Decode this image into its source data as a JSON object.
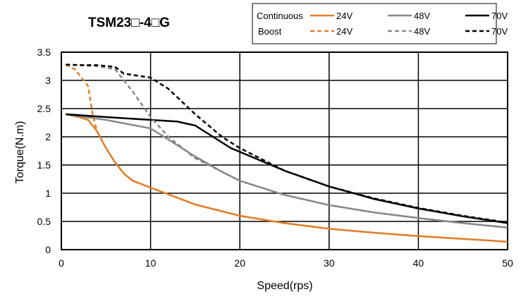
{
  "chart_data": {
    "type": "line",
    "title": "TSM23□-4□G",
    "xlabel": "Speed(rps)",
    "ylabel": "Torque(N.m)",
    "xlim": [
      0,
      50
    ],
    "ylim": [
      0,
      3.5
    ],
    "xticks": [
      0,
      10,
      20,
      30,
      40,
      50
    ],
    "yticks": [
      0,
      0.5,
      1,
      1.5,
      2,
      2.5,
      3,
      3.5
    ],
    "xtick_labels": [
      "0",
      "10",
      "20",
      "30",
      "40",
      "50"
    ],
    "ytick_labels": [
      "0",
      "0.5",
      "1",
      "1.5",
      "2",
      "2.5",
      "3",
      "3.5"
    ],
    "grid": true,
    "legend_position": "top-right",
    "legend": {
      "row_labels": [
        "Continuous",
        "Boost"
      ]
    },
    "series": [
      {
        "name": "24V",
        "group": "Continuous",
        "color": "#e07f2a",
        "dash": false,
        "points": [
          [
            0.5,
            2.4
          ],
          [
            2,
            2.35
          ],
          [
            3,
            2.3
          ],
          [
            4,
            2.1
          ],
          [
            5,
            1.8
          ],
          [
            6,
            1.55
          ],
          [
            7,
            1.35
          ],
          [
            8,
            1.22
          ],
          [
            10,
            1.1
          ],
          [
            12,
            0.98
          ],
          [
            15,
            0.8
          ],
          [
            20,
            0.6
          ],
          [
            25,
            0.47
          ],
          [
            30,
            0.37
          ],
          [
            35,
            0.3
          ],
          [
            40,
            0.24
          ],
          [
            45,
            0.19
          ],
          [
            50,
            0.14
          ]
        ]
      },
      {
        "name": "48V",
        "group": "Continuous",
        "color": "#888888",
        "dash": false,
        "points": [
          [
            0.5,
            2.4
          ],
          [
            5,
            2.3
          ],
          [
            9,
            2.18
          ],
          [
            10,
            2.15
          ],
          [
            12,
            1.95
          ],
          [
            15,
            1.65
          ],
          [
            18,
            1.38
          ],
          [
            20,
            1.22
          ],
          [
            25,
            0.97
          ],
          [
            30,
            0.79
          ],
          [
            35,
            0.66
          ],
          [
            40,
            0.56
          ],
          [
            45,
            0.47
          ],
          [
            50,
            0.39
          ]
        ]
      },
      {
        "name": "70V",
        "group": "Continuous",
        "color": "#000000",
        "dash": false,
        "points": [
          [
            0.5,
            2.4
          ],
          [
            5,
            2.35
          ],
          [
            10,
            2.3
          ],
          [
            13,
            2.27
          ],
          [
            15,
            2.2
          ],
          [
            17,
            2.0
          ],
          [
            19,
            1.8
          ],
          [
            22,
            1.6
          ],
          [
            25,
            1.4
          ],
          [
            30,
            1.12
          ],
          [
            35,
            0.9
          ],
          [
            40,
            0.73
          ],
          [
            45,
            0.59
          ],
          [
            50,
            0.47
          ]
        ]
      },
      {
        "name": "24V",
        "group": "Boost",
        "color": "#e07f2a",
        "dash": true,
        "points": [
          [
            0.5,
            3.28
          ],
          [
            1.5,
            3.2
          ],
          [
            2.5,
            3.0
          ],
          [
            3,
            2.9
          ],
          [
            3.5,
            2.4
          ],
          [
            4,
            2.1
          ],
          [
            5,
            1.8
          ],
          [
            6,
            1.55
          ],
          [
            7,
            1.35
          ],
          [
            8,
            1.22
          ],
          [
            10,
            1.1
          ],
          [
            12,
            0.98
          ],
          [
            15,
            0.8
          ],
          [
            20,
            0.6
          ],
          [
            25,
            0.47
          ],
          [
            30,
            0.37
          ],
          [
            35,
            0.3
          ],
          [
            40,
            0.24
          ],
          [
            45,
            0.19
          ],
          [
            50,
            0.14
          ]
        ]
      },
      {
        "name": "48V",
        "group": "Boost",
        "color": "#888888",
        "dash": true,
        "points": [
          [
            0.5,
            3.28
          ],
          [
            2,
            3.27
          ],
          [
            4,
            3.25
          ],
          [
            6,
            3.2
          ],
          [
            8,
            2.8
          ],
          [
            10,
            2.35
          ],
          [
            12,
            2.0
          ],
          [
            15,
            1.62
          ],
          [
            18,
            1.38
          ],
          [
            20,
            1.22
          ],
          [
            25,
            0.97
          ],
          [
            30,
            0.79
          ],
          [
            35,
            0.66
          ],
          [
            40,
            0.56
          ],
          [
            45,
            0.47
          ],
          [
            50,
            0.39
          ]
        ]
      },
      {
        "name": "70V",
        "group": "Boost",
        "color": "#000000",
        "dash": true,
        "points": [
          [
            0.5,
            3.28
          ],
          [
            2,
            3.27
          ],
          [
            4,
            3.27
          ],
          [
            6,
            3.24
          ],
          [
            7,
            3.12
          ],
          [
            10,
            3.05
          ],
          [
            12,
            2.85
          ],
          [
            15,
            2.4
          ],
          [
            18,
            2.0
          ],
          [
            20,
            1.8
          ],
          [
            25,
            1.4
          ],
          [
            30,
            1.12
          ],
          [
            35,
            0.91
          ],
          [
            40,
            0.74
          ],
          [
            45,
            0.6
          ],
          [
            50,
            0.48
          ]
        ]
      }
    ]
  }
}
